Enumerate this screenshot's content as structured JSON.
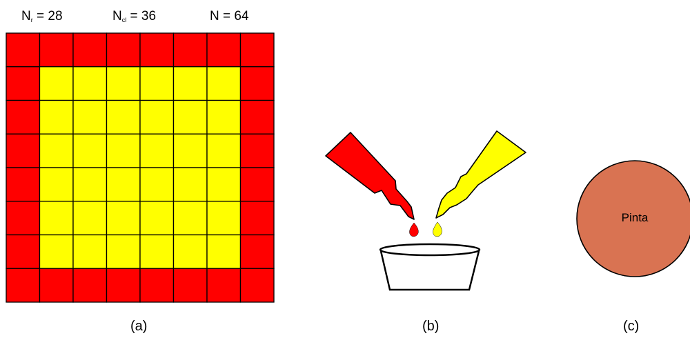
{
  "panel_a": {
    "counts": [
      {
        "symbol": "N",
        "sub": "r",
        "rest": " = 28"
      },
      {
        "symbol": "N",
        "sub": "cl",
        "rest": " = 36"
      },
      {
        "symbol": "N",
        "sub": "",
        "rest": " = 64"
      }
    ],
    "grid": {
      "rows": 8,
      "cols": 8
    },
    "colors": {
      "border_cell": "#ff0000",
      "inner_cell": "#ffff00",
      "line": "#000000"
    },
    "caption": "(a)"
  },
  "panel_b": {
    "bottles": [
      {
        "name": "red-bottle",
        "color": "#ff0000"
      },
      {
        "name": "yellow-bottle",
        "color": "#ffff00"
      }
    ],
    "caption": "(b)"
  },
  "panel_c": {
    "circle_color": "#d97352",
    "label": "Pinta",
    "caption": "(c)"
  }
}
